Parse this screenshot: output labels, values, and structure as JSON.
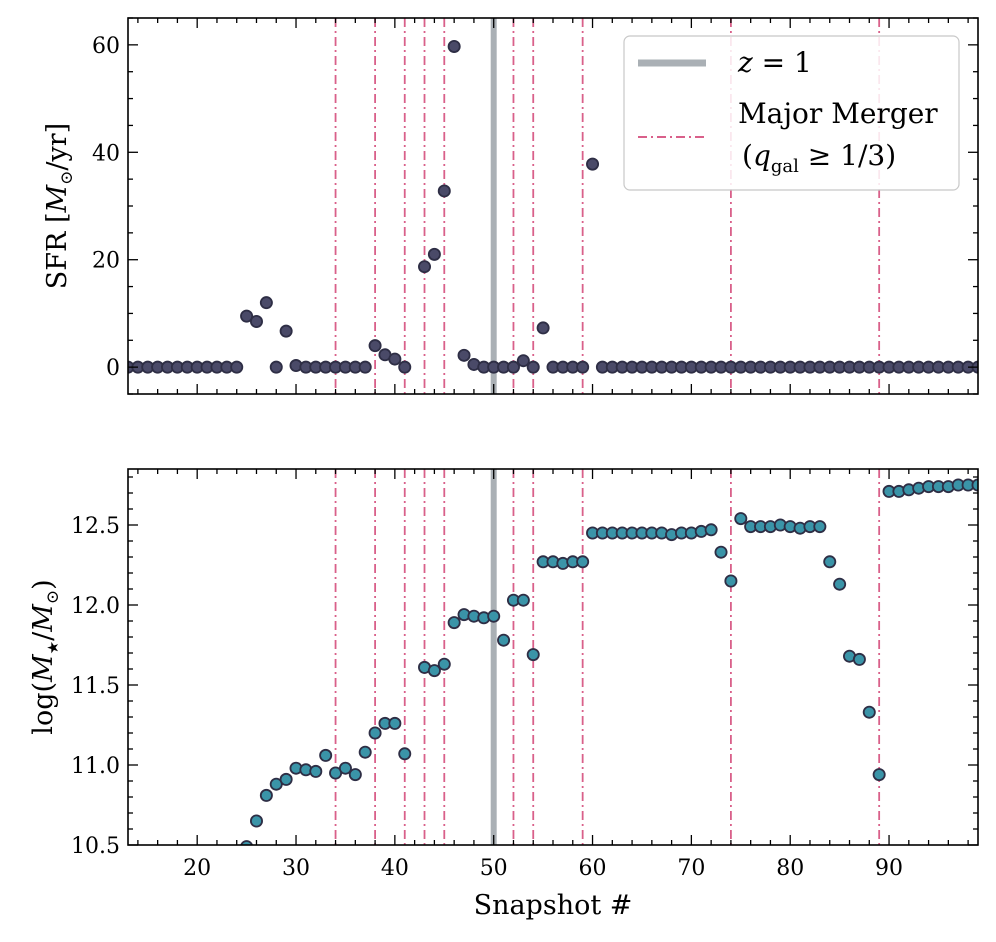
{
  "chart_data": [
    {
      "type": "scatter",
      "panel": "top",
      "ylabel_prefix": "SFR [",
      "ylabel_symbol": "M",
      "ylabel_sub": "⊙",
      "ylabel_suffix": "/yr]",
      "xlim": [
        13,
        99
      ],
      "ylim": [
        -5,
        65
      ],
      "yticks": [
        0,
        20,
        40,
        60
      ],
      "ytick_labels": [
        "0",
        "20",
        "40",
        "60"
      ],
      "point_face": "#4a4a68",
      "point_edge": "#2e2e45",
      "x": [
        13,
        14,
        15,
        16,
        17,
        18,
        19,
        20,
        21,
        22,
        23,
        24,
        25,
        26,
        27,
        28,
        29,
        30,
        31,
        32,
        33,
        34,
        35,
        36,
        37,
        38,
        39,
        40,
        41,
        43,
        44,
        45,
        46,
        47,
        48,
        49,
        50,
        51,
        52,
        53,
        54,
        55,
        56,
        57,
        58,
        59,
        60,
        61,
        62,
        63,
        64,
        65,
        66,
        67,
        68,
        69,
        70,
        71,
        72,
        73,
        74,
        75,
        76,
        77,
        78,
        79,
        80,
        81,
        82,
        83,
        84,
        85,
        86,
        87,
        88,
        89,
        90,
        91,
        92,
        93,
        94,
        95,
        96,
        97,
        98,
        99
      ],
      "values": [
        0,
        0,
        0,
        0,
        0,
        0,
        0,
        0,
        0,
        0,
        0,
        0,
        9.5,
        8.5,
        12,
        0,
        6.7,
        0.3,
        0,
        0,
        0,
        0,
        0,
        0,
        0,
        4,
        2.3,
        1.5,
        0,
        18.7,
        21,
        32.8,
        59.7,
        2.2,
        0.5,
        0,
        0,
        0,
        0,
        1.2,
        0,
        7.3,
        0,
        0,
        0,
        0,
        37.8,
        0,
        0,
        0,
        0,
        0,
        0,
        0,
        0,
        0,
        0,
        0,
        0,
        0,
        0,
        0,
        0,
        0,
        0,
        0,
        0,
        0,
        0,
        0,
        0,
        0,
        0,
        0,
        0,
        0,
        0,
        0,
        0,
        0,
        0,
        0,
        0,
        0,
        0,
        0
      ]
    },
    {
      "type": "scatter",
      "panel": "bottom",
      "ylabel_prefix": "log(",
      "ylabel_symbol": "M",
      "ylabel_sub": "★",
      "ylabel_mid": "/",
      "ylabel_symbol2": "M",
      "ylabel_sub2": "⊙",
      "ylabel_suffix": ")",
      "xlabel": "Snapshot #",
      "xlim": [
        13,
        99
      ],
      "ylim": [
        10.5,
        12.85
      ],
      "xticks": [
        20,
        30,
        40,
        50,
        60,
        70,
        80,
        90
      ],
      "xtick_labels": [
        "20",
        "30",
        "40",
        "50",
        "60",
        "70",
        "80",
        "90"
      ],
      "yticks": [
        10.5,
        11.0,
        11.5,
        12.0,
        12.5
      ],
      "ytick_labels": [
        "10.5",
        "11.0",
        "11.5",
        "12.0",
        "12.5"
      ],
      "point_face": "#3a94a8",
      "point_edge": "#2e2e45",
      "x": [
        25,
        26,
        27,
        28,
        29,
        30,
        31,
        32,
        33,
        34,
        35,
        36,
        37,
        38,
        39,
        40,
        41,
        43,
        44,
        45,
        46,
        47,
        48,
        49,
        50,
        51,
        52,
        53,
        54,
        55,
        56,
        57,
        58,
        59,
        60,
        61,
        62,
        63,
        64,
        65,
        66,
        67,
        68,
        69,
        70,
        71,
        72,
        73,
        74,
        75,
        76,
        77,
        78,
        79,
        80,
        81,
        82,
        83,
        84,
        85,
        86,
        87,
        88,
        89,
        90,
        91,
        92,
        93,
        94,
        95,
        96,
        97,
        98,
        99
      ],
      "values": [
        10.49,
        10.65,
        10.81,
        10.88,
        10.91,
        10.98,
        10.97,
        10.96,
        11.06,
        10.95,
        10.98,
        10.94,
        11.08,
        11.2,
        11.26,
        11.26,
        11.07,
        11.61,
        11.59,
        11.63,
        11.89,
        11.94,
        11.93,
        11.92,
        11.93,
        11.78,
        12.03,
        12.03,
        11.69,
        12.27,
        12.27,
        12.26,
        12.27,
        12.27,
        12.45,
        12.45,
        12.45,
        12.45,
        12.45,
        12.45,
        12.45,
        12.45,
        12.44,
        12.45,
        12.45,
        12.46,
        12.47,
        12.33,
        12.15,
        12.54,
        12.49,
        12.49,
        12.49,
        12.5,
        12.49,
        12.48,
        12.49,
        12.49,
        12.27,
        12.13,
        11.68,
        11.66,
        11.33,
        10.94,
        12.71,
        12.71,
        12.72,
        12.73,
        12.74,
        12.74,
        12.74,
        12.75,
        12.75,
        12.75
      ]
    }
  ],
  "markers": {
    "z1_snapshot": 50,
    "z1_color": "#aab0b5",
    "merger_snapshots": [
      34,
      38,
      41,
      43,
      45,
      52,
      54,
      59,
      74,
      89
    ],
    "merger_color": "#d9608a"
  },
  "legend": {
    "z1_label_var": "z",
    "z1_label_rest": " = 1",
    "merger_label_line1": "Major Merger",
    "merger_label_line2_open": "(",
    "merger_label_q": "q",
    "merger_label_sub": "gal",
    "merger_label_line2_rest": " ≥ 1/3)"
  }
}
